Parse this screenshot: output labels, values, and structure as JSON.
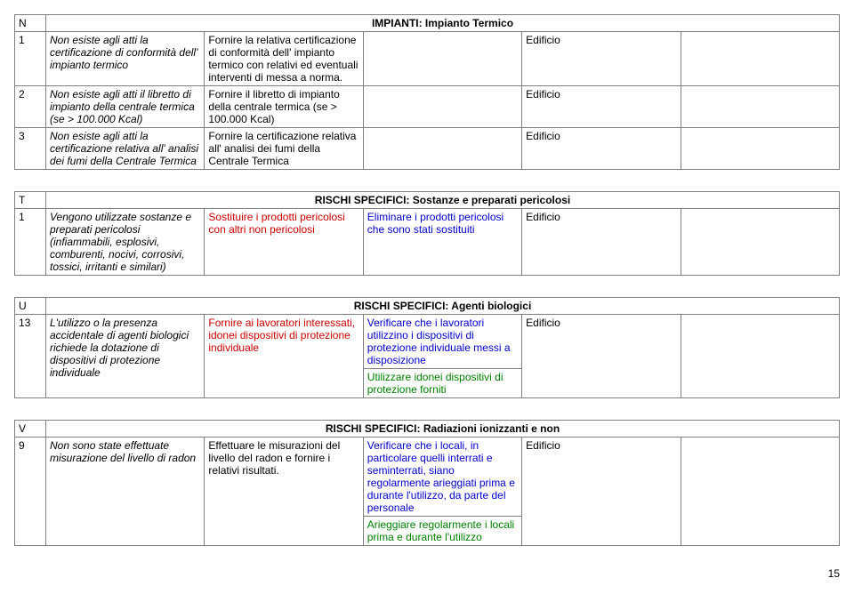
{
  "tables": [
    {
      "letter": "N",
      "title": "IMPIANTI: Impianto Termico",
      "rows": [
        {
          "num": "1",
          "obs": "Non esiste agli atti la certificazione di conformità dell' impianto termico",
          "act": "Fornire la relativa certificazione di conformità dell' impianto termico con relativi ed eventuali interventi di messa a norma.",
          "ver": "",
          "ver2": "",
          "loc": "Edificio",
          "end": ""
        },
        {
          "num": "2",
          "obs": "Non esiste agli atti il libretto di impianto della centrale termica (se > 100.000 Kcal)",
          "act": "Fornire il libretto di impianto della centrale termica (se > 100.000 Kcal)",
          "ver": "",
          "ver2": "",
          "loc": "Edificio",
          "end": ""
        },
        {
          "num": "3",
          "obs": "Non esiste agli atti la certificazione relativa all' analisi dei fumi della Centrale Termica",
          "act": "Fornire la certificazione relativa all' analisi dei fumi della Centrale Termica",
          "ver": "",
          "ver2": "",
          "loc": "Edificio",
          "end": ""
        }
      ]
    },
    {
      "letter": "T",
      "title": "RISCHI SPECIFICI: Sostanze e preparati pericolosi",
      "rows": [
        {
          "num": "1",
          "obs": "Vengono utilizzate sostanze e preparati pericolosi (infiammabili, esplosivi, comburenti, nocivi, corrosivi, tossici, irritanti e similari)",
          "act_red": "Sostituire i prodotti pericolosi con altri non pericolosi",
          "ver_blue": "Eliminare i prodotti pericolosi che sono stati sostituiti",
          "loc": "Edificio",
          "end": ""
        }
      ]
    },
    {
      "letter": "U",
      "title": "RISCHI SPECIFICI: Agenti biologici",
      "rows": [
        {
          "num": "13",
          "obs": "L'utilizzo o la presenza accidentale di agenti biologici richiede la dotazione di dispositivi di protezione individuale",
          "act_red": "Fornire ai lavoratori interessati, idonei dispositivi di protezione individuale",
          "ver_blue": "Verificare che i lavoratori utilizzino i dispositivi di protezione individuale messi a disposizione",
          "ver_green": "Utilizzare idonei dispositivi di protezione forniti",
          "loc": "Edificio",
          "end": ""
        }
      ]
    },
    {
      "letter": "V",
      "title": "RISCHI SPECIFICI: Radiazioni ionizzanti e non",
      "rows": [
        {
          "num": "9",
          "obs": "Non sono state effettuate misurazione del livello di radon",
          "act": "Effettuare le misurazioni del livello del radon e fornire i relativi risultati.",
          "ver_blue": "Verificare che i locali, in particolare quelli interrati e seminterrati, siano regolarmente arieggiati prima e durante l'utilizzo, da parte del personale",
          "ver_green": "Arieggiare regolarmente i locali prima e durante l'utilizzo",
          "loc": "Edificio",
          "end": ""
        }
      ]
    }
  ],
  "page_number": "15"
}
